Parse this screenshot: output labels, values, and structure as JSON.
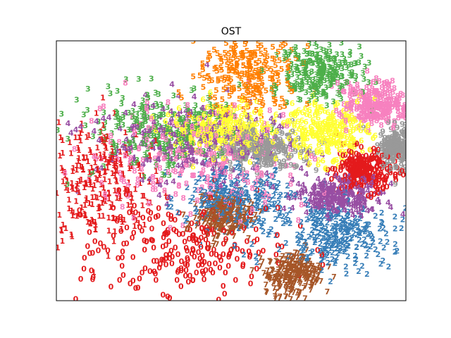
{
  "chart_data": {
    "type": "scatter",
    "title": "OST",
    "xlabel": "",
    "ylabel": "",
    "xticks": [],
    "yticks": [],
    "grid": false,
    "legend": "none",
    "marker": "digit labels 0-9",
    "palette": {
      "0": "#e41a1c",
      "1": "#e41a1c",
      "2": "#377eb8",
      "3": "#4daf4a",
      "4": "#984ea3",
      "5": "#ff7f00",
      "6": "#ffff33",
      "7": "#a65628",
      "8": "#f781bf",
      "9": "#999999"
    },
    "clusters": [
      {
        "label": "5",
        "color": "#ff7f00",
        "cx": 0.55,
        "cy": 0.87,
        "sx": 0.07,
        "sy": 0.08
      },
      {
        "label": "3",
        "color": "#4daf4a",
        "cx": 0.75,
        "cy": 0.88,
        "sx": 0.06,
        "sy": 0.05
      },
      {
        "label": "8",
        "color": "#f781bf",
        "cx": 0.91,
        "cy": 0.75,
        "sx": 0.05,
        "sy": 0.04
      },
      {
        "label": "6",
        "color": "#ffff33",
        "cx": 0.77,
        "cy": 0.65,
        "sx": 0.06,
        "sy": 0.06
      },
      {
        "label": "9",
        "color": "#999999",
        "cx": 0.98,
        "cy": 0.58,
        "sx": 0.03,
        "sy": 0.04
      },
      {
        "label": "0",
        "color": "#e41a1c",
        "cx": 0.88,
        "cy": 0.5,
        "sx": 0.04,
        "sy": 0.04
      },
      {
        "label": "4",
        "color": "#984ea3",
        "cx": 0.8,
        "cy": 0.4,
        "sx": 0.06,
        "sy": 0.04
      },
      {
        "label": "2",
        "color": "#377eb8",
        "cx": 0.8,
        "cy": 0.25,
        "sx": 0.08,
        "sy": 0.06
      },
      {
        "label": "2",
        "color": "#377eb8",
        "cx": 0.52,
        "cy": 0.38,
        "sx": 0.08,
        "sy": 0.07
      },
      {
        "label": "7",
        "color": "#a65628",
        "cx": 0.68,
        "cy": 0.1,
        "sx": 0.04,
        "sy": 0.04
      },
      {
        "label": "0",
        "color": "#e41a1c",
        "cx": 0.35,
        "cy": 0.2,
        "sx": 0.16,
        "sy": 0.11
      },
      {
        "label": "1",
        "color": "#e41a1c",
        "cx": 0.12,
        "cy": 0.45,
        "sx": 0.07,
        "sy": 0.12
      },
      {
        "label": "4",
        "color": "#984ea3",
        "cx": 0.38,
        "cy": 0.62,
        "sx": 0.14,
        "sy": 0.08
      },
      {
        "label": "3",
        "color": "#4daf4a",
        "cx": 0.3,
        "cy": 0.66,
        "sx": 0.12,
        "sy": 0.08
      },
      {
        "label": "6",
        "color": "#ffff33",
        "cx": 0.48,
        "cy": 0.66,
        "sx": 0.07,
        "sy": 0.05
      },
      {
        "label": "8",
        "color": "#f781bf",
        "cx": 0.42,
        "cy": 0.55,
        "sx": 0.15,
        "sy": 0.1
      },
      {
        "label": "9",
        "color": "#999999",
        "cx": 0.58,
        "cy": 0.58,
        "sx": 0.06,
        "sy": 0.04
      },
      {
        "label": "7",
        "color": "#a65628",
        "cx": 0.48,
        "cy": 0.32,
        "sx": 0.04,
        "sy": 0.04
      }
    ]
  }
}
